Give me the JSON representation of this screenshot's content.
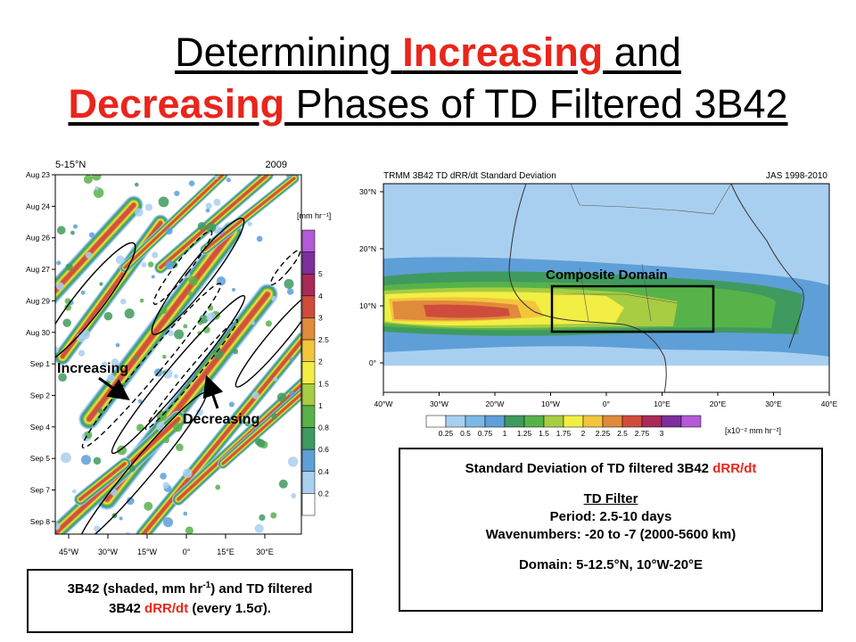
{
  "slide": {
    "title_line1": [
      "Determining ",
      "Increasing",
      " and"
    ],
    "title_line2": [
      "Decreasing",
      " Phases of TD Filtered 3B42"
    ]
  },
  "hovmoller": {
    "lat_label": "5-15°N",
    "year_label": "2009",
    "units": "[mm hr⁻¹]",
    "y_ticks": [
      "Aug 23",
      "Aug 24",
      "Aug 26",
      "Aug 27",
      "Aug 29",
      "Aug 30",
      "Sep 1",
      "Sep 2",
      "Sep 4",
      "Sep 5",
      "Sep 7",
      "Sep 8"
    ],
    "x_ticks": [
      "45°W",
      "30°W",
      "15°W",
      "0°",
      "15°E",
      "30°E"
    ],
    "colorbar_ticks": [
      "5",
      "4",
      "3",
      "2.5",
      "2",
      "1.5",
      "1",
      "0.8",
      "0.6",
      "0.4",
      "0.2"
    ],
    "colorbar_colors": [
      "#ffffff",
      "#a9cff0",
      "#5e9fd8",
      "#3f9a5f",
      "#58b24a",
      "#a8cc42",
      "#f2ee43",
      "#f3c53c",
      "#e08a3c",
      "#cf4c3c",
      "#a82a57",
      "#7b2f9c",
      "#b35bd6"
    ],
    "annotations": {
      "increasing": "Increasing",
      "decreasing": "Decreasing"
    }
  },
  "map": {
    "title_left": "TRMM 3B42 TD dRR/dt Standard Deviation",
    "title_right": "JAS 1998-2010",
    "domain_label": "Composite Domain",
    "y_ticks": [
      "30°N",
      "20°N",
      "10°N",
      "0°"
    ],
    "x_ticks": [
      "40°W",
      "30°W",
      "20°W",
      "10°W",
      "0°",
      "10°E",
      "20°E",
      "30°E",
      "40°E"
    ],
    "colorbar_ticks": [
      "0.25",
      "0.5",
      "0.75",
      "1",
      "1.25",
      "1.5",
      "1.75",
      "2",
      "2.25",
      "2.5",
      "2.75",
      "3"
    ],
    "colorbar_units": "[x10⁻² mm hr⁻²]",
    "colorbar_colors": [
      "#ffffff",
      "#a9cff0",
      "#7cb8e6",
      "#5e9fd8",
      "#3f9a5f",
      "#58b24a",
      "#a8cc42",
      "#f2ee43",
      "#f3c53c",
      "#e08a3c",
      "#cf4c3c",
      "#a82a57",
      "#7b2f9c",
      "#b35bd6"
    ]
  },
  "caption_left": {
    "line1_a": "3B42 (shaded, mm hr",
    "line1_sup": "-1",
    "line1_b": ") and TD filtered",
    "line2_a": "3B42 ",
    "line2_red": "dRR/dt",
    "line2_b": " (every 1.5σ)."
  },
  "caption_right": {
    "heading_a": "Standard Deviation of TD filtered 3B42 ",
    "heading_red": "dRR/dt",
    "filter_title": "TD Filter",
    "period": "Period: 2.5-10 days",
    "wavenumbers": "Wavenumbers: -20 to -7 (2000-5600 km)",
    "domain": "Domain: 5-12.5°N, 10°W-20°E"
  },
  "chart_data": [
    {
      "type": "heatmap",
      "title": "5-15°N",
      "subtitle": "2009",
      "xlabel": "",
      "ylabel": "",
      "x_ticks": [
        "45°W",
        "30°W",
        "15°W",
        "0°",
        "15°E",
        "30°E"
      ],
      "y_ticks": [
        "Aug 23",
        "Aug 24",
        "Aug 26",
        "Aug 27",
        "Aug 29",
        "Aug 30",
        "Sep 1",
        "Sep 2",
        "Sep 4",
        "Sep 5",
        "Sep 7",
        "Sep 8"
      ],
      "colorbar_levels": [
        0.2,
        0.4,
        0.6,
        0.8,
        1,
        1.5,
        2,
        2.5,
        3,
        4,
        5
      ],
      "colorbar_units": "[mm hr-1]"
    },
    {
      "type": "heatmap",
      "title": "TRMM 3B42 TD dRR/dt Standard Deviation",
      "subtitle": "JAS 1998-2010",
      "x_ticks": [
        "40°W",
        "30°W",
        "20°W",
        "10°W",
        "0°",
        "10°E",
        "20°E",
        "30°E",
        "40°E"
      ],
      "y_ticks": [
        "30°N",
        "20°N",
        "10°N",
        "0°"
      ],
      "colorbar_levels": [
        0.25,
        0.5,
        0.75,
        1,
        1.25,
        1.5,
        1.75,
        2,
        2.25,
        2.5,
        2.75,
        3
      ],
      "colorbar_units": "[x10-2 mm hr-2]"
    }
  ]
}
